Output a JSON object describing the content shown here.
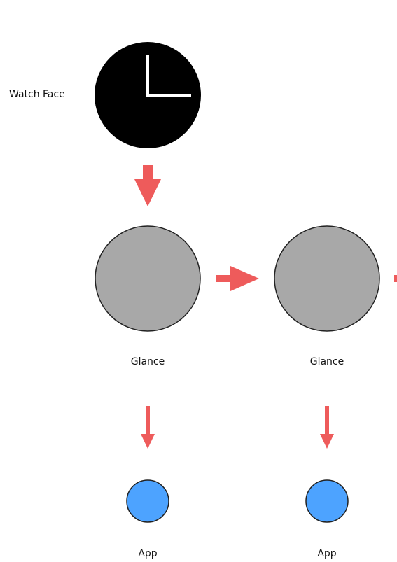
{
  "nodes": {
    "watch_face": {
      "label": "Watch Face",
      "fill": "#000000"
    },
    "glance_1": {
      "label": "Glance",
      "fill": "#a8a8a8"
    },
    "glance_2": {
      "label": "Glance",
      "fill": "#a8a8a8"
    },
    "app_1": {
      "label": "App",
      "fill": "#4da3ff"
    },
    "app_2": {
      "label": "App",
      "fill": "#4da3ff"
    }
  },
  "colors": {
    "arrow": "#ee5b5b",
    "clock_hands": "#ffffff",
    "outline": "#222222"
  }
}
